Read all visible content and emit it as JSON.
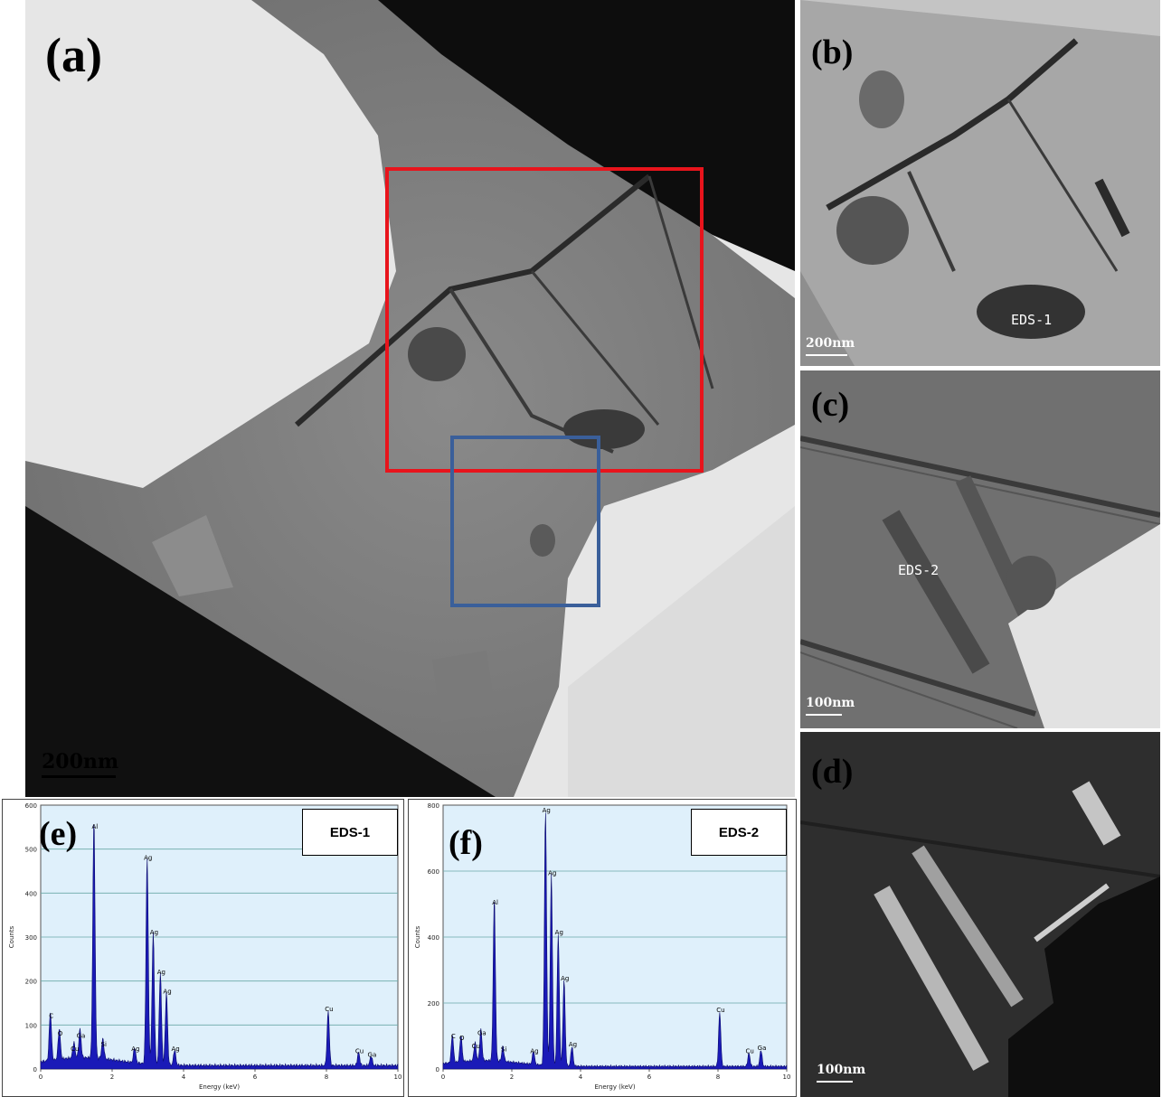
{
  "panels": {
    "a": {
      "label": "(a)",
      "scale": "200nm"
    },
    "b": {
      "label": "(b)",
      "scale": "200nm",
      "tag": "EDS-1"
    },
    "c": {
      "label": "(c)",
      "scale": "100nm",
      "tag": "EDS-2"
    },
    "d": {
      "label": "(d)",
      "scale": "100nm"
    },
    "e": {
      "label": "(e)",
      "box": "EDS-1"
    },
    "f": {
      "label": "(f)",
      "box": "EDS-2"
    }
  },
  "colors": {
    "red_box": "#e8141c",
    "blue_box": "#3a5f9a",
    "plot_bg": "#dff0fb",
    "peak": "#1a1ab8"
  },
  "chart_data": [
    {
      "type": "line",
      "id": "e",
      "xlabel": "Energy (keV)",
      "ylabel": "Counts",
      "xlim": [
        0,
        10
      ],
      "ylim": [
        0,
        600
      ],
      "xticks": [
        "0",
        "2",
        "4",
        "6",
        "8",
        "10"
      ],
      "yticks": [
        "0",
        "100",
        "200",
        "300",
        "400",
        "500",
        "600"
      ],
      "peaks": [
        {
          "x": 0.27,
          "y": 110,
          "label": "C"
        },
        {
          "x": 0.52,
          "y": 70,
          "label": "O"
        },
        {
          "x": 0.93,
          "y": 35,
          "label": "Cu"
        },
        {
          "x": 1.1,
          "y": 65,
          "label": "Ga"
        },
        {
          "x": 1.49,
          "y": 540,
          "label": "Al"
        },
        {
          "x": 1.74,
          "y": 45,
          "label": "Si"
        },
        {
          "x": 2.63,
          "y": 35,
          "label": "Ag"
        },
        {
          "x": 2.98,
          "y": 470,
          "label": "Ag"
        },
        {
          "x": 3.15,
          "y": 300,
          "label": "Ag"
        },
        {
          "x": 3.35,
          "y": 210,
          "label": "Ag"
        },
        {
          "x": 3.52,
          "y": 165,
          "label": "Ag"
        },
        {
          "x": 3.75,
          "y": 35,
          "label": "Ag"
        },
        {
          "x": 8.05,
          "y": 125,
          "label": "Cu"
        },
        {
          "x": 8.9,
          "y": 30,
          "label": "Cu"
        },
        {
          "x": 9.25,
          "y": 22,
          "label": "Ga"
        }
      ]
    },
    {
      "type": "line",
      "id": "f",
      "xlabel": "Energy (keV)",
      "ylabel": "Counts",
      "xlim": [
        0,
        10
      ],
      "ylim": [
        0,
        800
      ],
      "xticks": [
        "0",
        "2",
        "4",
        "6",
        "8",
        "10"
      ],
      "yticks": [
        "0",
        "200",
        "400",
        "600",
        "800"
      ],
      "peaks": [
        {
          "x": 0.27,
          "y": 85,
          "label": "C"
        },
        {
          "x": 0.52,
          "y": 80,
          "label": "O"
        },
        {
          "x": 0.93,
          "y": 55,
          "label": "Cu"
        },
        {
          "x": 1.1,
          "y": 95,
          "label": "Ga"
        },
        {
          "x": 1.49,
          "y": 490,
          "label": "Al"
        },
        {
          "x": 1.74,
          "y": 45,
          "label": "Si"
        },
        {
          "x": 2.63,
          "y": 40,
          "label": "Ag"
        },
        {
          "x": 2.98,
          "y": 770,
          "label": "Ag"
        },
        {
          "x": 3.15,
          "y": 580,
          "label": "Ag"
        },
        {
          "x": 3.35,
          "y": 400,
          "label": "Ag"
        },
        {
          "x": 3.52,
          "y": 260,
          "label": "Ag"
        },
        {
          "x": 3.75,
          "y": 60,
          "label": "Ag"
        },
        {
          "x": 8.05,
          "y": 165,
          "label": "Cu"
        },
        {
          "x": 8.9,
          "y": 40,
          "label": "Cu"
        },
        {
          "x": 9.25,
          "y": 50,
          "label": "Ga"
        }
      ]
    }
  ]
}
